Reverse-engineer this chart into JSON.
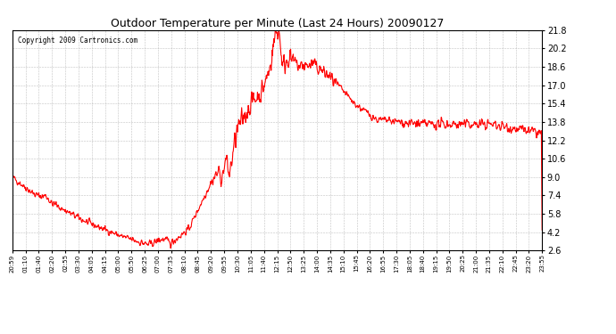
{
  "title": "Outdoor Temperature per Minute (Last 24 Hours) 20090127",
  "copyright_text": "Copyright 2009 Cartronics.com",
  "line_color": "#ff0000",
  "background_color": "#ffffff",
  "plot_bg_color": "#ffffff",
  "grid_color": "#999999",
  "yticks": [
    2.6,
    4.2,
    5.8,
    7.4,
    9.0,
    10.6,
    12.2,
    13.8,
    15.4,
    17.0,
    18.6,
    20.2,
    21.8
  ],
  "ylim": [
    2.6,
    21.8
  ],
  "xtick_labels": [
    "20:59",
    "01:10",
    "01:40",
    "02:20",
    "02:55",
    "03:30",
    "04:05",
    "04:15",
    "05:00",
    "05:50",
    "06:25",
    "07:00",
    "07:35",
    "08:10",
    "08:45",
    "09:20",
    "09:55",
    "10:30",
    "11:05",
    "11:40",
    "12:15",
    "12:50",
    "13:25",
    "14:00",
    "14:35",
    "15:10",
    "15:45",
    "16:20",
    "16:55",
    "17:30",
    "18:05",
    "18:40",
    "19:15",
    "19:50",
    "20:25",
    "21:00",
    "21:35",
    "22:10",
    "22:45",
    "23:20",
    "23:55"
  ],
  "line_width": 0.8,
  "title_fontsize": 9,
  "ylabel_fontsize": 7,
  "xlabel_fontsize": 5,
  "copyright_fontsize": 5.5
}
